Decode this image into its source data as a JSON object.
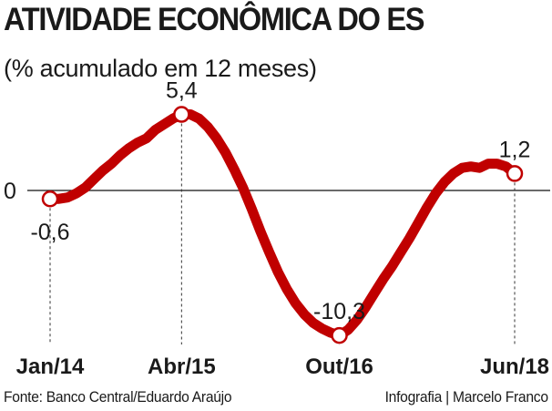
{
  "header": {
    "title": "ATIVIDADE ECONÔMICA DO ES",
    "subtitle": "(% acumulado em 12 meses)"
  },
  "footer": {
    "source": "Fonte: Banco Central/Eduardo Araújo",
    "credit": "Infografia | Marcelo Franco"
  },
  "colors": {
    "line": "#c00000",
    "axis": "#111111",
    "marker_fill": "#ffffff"
  },
  "chart_data": {
    "type": "line",
    "title": "ATIVIDADE ECONÔMICA DO ES",
    "ylabel": "% acumulado em 12 meses",
    "xlabel": "",
    "ylim": [
      -11.2,
      6.6
    ],
    "zero_label": "0",
    "x_range": [
      0,
      53
    ],
    "ticks": [
      {
        "label": "Jan/14",
        "x": 0
      },
      {
        "label": "Abr/15",
        "x": 15
      },
      {
        "label": "Out/16",
        "x": 33
      },
      {
        "label": "Jun/18",
        "x": 53
      }
    ],
    "series": [
      {
        "name": "Atividade econômica",
        "x": [
          0,
          1,
          2,
          3,
          4,
          5,
          6,
          7,
          8,
          9,
          10,
          11,
          12,
          13,
          14,
          15,
          16,
          17,
          18,
          19,
          20,
          21,
          22,
          23,
          24,
          25,
          26,
          27,
          28,
          29,
          30,
          31,
          32,
          33,
          34,
          35,
          36,
          37,
          38,
          39,
          40,
          41,
          42,
          43,
          44,
          45,
          46,
          47,
          48,
          49,
          50,
          51,
          52,
          53
        ],
        "values": [
          -0.6,
          -0.6,
          -0.5,
          -0.2,
          0.2,
          0.8,
          1.4,
          1.9,
          2.5,
          3.0,
          3.4,
          3.7,
          4.3,
          4.7,
          5.1,
          5.4,
          5.4,
          5.1,
          4.5,
          3.7,
          2.7,
          1.5,
          0.2,
          -1.3,
          -2.9,
          -4.4,
          -5.8,
          -7.0,
          -8.0,
          -8.8,
          -9.4,
          -9.8,
          -10.1,
          -10.3,
          -9.9,
          -9.2,
          -8.3,
          -7.3,
          -6.3,
          -5.4,
          -4.4,
          -3.4,
          -2.3,
          -1.2,
          -0.2,
          0.6,
          1.2,
          1.6,
          1.7,
          1.6,
          1.9,
          1.9,
          1.7,
          1.2
        ]
      }
    ],
    "annotations": [
      {
        "x": 0,
        "value": -0.6,
        "text": "-0,6",
        "position": "below",
        "tick": "Jan/14"
      },
      {
        "x": 15,
        "value": 5.4,
        "text": "5,4",
        "position": "above",
        "tick": "Abr/15"
      },
      {
        "x": 33,
        "value": -10.3,
        "text": "-10,3",
        "position": "above",
        "tick": "Out/16"
      },
      {
        "x": 53,
        "value": 1.2,
        "text": "1,2",
        "position": "above",
        "tick": "Jun/18"
      }
    ],
    "grid": false
  }
}
